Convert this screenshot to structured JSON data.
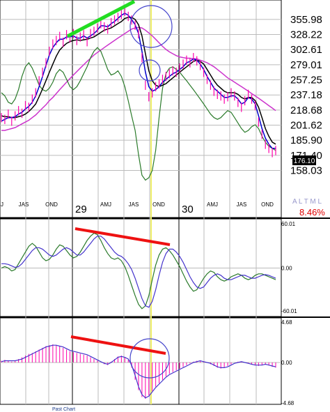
{
  "chart_data": [
    {
      "type": "line",
      "panel": "price",
      "y_ticks": [
        "355.98",
        "328.22",
        "302.61",
        "279.01",
        "257.25",
        "237.18",
        "218.68",
        "201.62",
        "185.90",
        "171.40",
        "158.03"
      ],
      "y_tick_values": [
        355.98,
        328.22,
        302.61,
        279.01,
        257.25,
        237.18,
        218.68,
        201.62,
        185.9,
        171.4,
        158.03
      ],
      "ylim": [
        148,
        375
      ],
      "scale": "log",
      "last_price_label": "176.10",
      "change_label": "8.46%",
      "change_color": "#e00000",
      "toggle_label": "A L T M L",
      "x_month_labels": [
        "J",
        "JAS",
        "OND",
        "AMJ",
        "JAS",
        "OND",
        "AMJ",
        "JAS",
        "OND"
      ],
      "x_year_labels": [
        "29",
        "30"
      ],
      "series": [
        {
          "color": "#ff00aa",
          "kind": "price_bars"
        },
        {
          "color": "#0000cc",
          "kind": "short_ma"
        },
        {
          "color": "#000000",
          "kind": "mid_ma"
        },
        {
          "color": "#cc33cc",
          "kind": "long_ma"
        },
        {
          "color": "#2a7a2a",
          "kind": "oscillator_overlay"
        }
      ],
      "x": [
        0,
        1,
        2,
        3,
        4,
        5,
        6,
        7,
        8,
        9,
        10,
        11,
        12,
        13,
        14,
        15,
        16,
        17,
        18,
        19,
        20,
        21,
        22,
        23,
        24,
        25,
        26,
        27,
        28,
        29,
        30,
        31,
        32,
        33,
        34,
        35,
        36,
        37,
        38,
        39,
        40,
        41,
        42,
        43,
        44,
        45,
        46,
        47,
        48,
        49,
        50,
        51,
        52,
        53,
        54,
        55,
        56,
        57,
        58,
        59,
        60,
        61,
        62,
        63,
        64,
        65,
        66,
        67,
        68,
        69,
        70,
        71,
        72,
        73,
        74,
        75,
        76,
        77,
        78,
        79,
        80
      ],
      "price": [
        210,
        208,
        214,
        206,
        212,
        218,
        215,
        224,
        222,
        232,
        240,
        256,
        268,
        282,
        300,
        312,
        318,
        325,
        315,
        328,
        322,
        330,
        318,
        324,
        328,
        316,
        330,
        334,
        340,
        348,
        342,
        338,
        350,
        355,
        360,
        366,
        372,
        362,
        355,
        345,
        330,
        290,
        250,
        235,
        240,
        248,
        252,
        258,
        262,
        266,
        270,
        268,
        274,
        280,
        286,
        282,
        290,
        285,
        278,
        268,
        258,
        250,
        242,
        238,
        236,
        232,
        235,
        240,
        236,
        228,
        222,
        230,
        238,
        232,
        224,
        205,
        192,
        182,
        178,
        174,
        176
      ],
      "short_ma": [
        206,
        208,
        210,
        210,
        211,
        214,
        216,
        220,
        223,
        228,
        236,
        248,
        262,
        278,
        294,
        306,
        314,
        320,
        320,
        324,
        324,
        326,
        322,
        322,
        326,
        322,
        326,
        330,
        336,
        344,
        344,
        342,
        348,
        352,
        358,
        364,
        368,
        364,
        356,
        346,
        330,
        300,
        268,
        248,
        242,
        244,
        248,
        254,
        258,
        262,
        266,
        268,
        272,
        276,
        282,
        284,
        288,
        286,
        280,
        272,
        262,
        254,
        246,
        242,
        238,
        234,
        234,
        236,
        236,
        232,
        226,
        228,
        234,
        232,
        226,
        212,
        198,
        188,
        182,
        178,
        178
      ],
      "mid_ma": [
        212,
        211,
        211,
        210,
        210,
        211,
        212,
        214,
        217,
        221,
        226,
        235,
        245,
        256,
        268,
        280,
        292,
        302,
        308,
        313,
        316,
        318,
        319,
        318,
        319,
        320,
        322,
        324,
        328,
        332,
        336,
        338,
        340,
        344,
        348,
        352,
        358,
        360,
        360,
        356,
        346,
        326,
        296,
        270,
        256,
        250,
        248,
        250,
        252,
        256,
        260,
        264,
        268,
        272,
        276,
        280,
        284,
        286,
        284,
        280,
        272,
        264,
        256,
        250,
        246,
        242,
        240,
        240,
        240,
        238,
        234,
        232,
        234,
        234,
        230,
        222,
        210,
        198,
        190,
        184,
        182
      ],
      "long_ma": [
        196,
        196,
        197,
        198,
        199,
        201,
        203,
        205,
        207,
        210,
        213,
        217,
        221,
        225,
        230,
        234,
        239,
        244,
        249,
        254,
        259,
        264,
        269,
        274,
        279,
        284,
        289,
        294,
        298,
        302,
        306,
        310,
        314,
        318,
        322,
        326,
        330,
        334,
        338,
        340,
        341,
        340,
        336,
        331,
        326,
        320,
        314,
        308,
        303,
        299,
        296,
        293,
        291,
        290,
        289,
        289,
        288,
        288,
        286,
        284,
        282,
        279,
        276,
        272,
        268,
        264,
        260,
        257,
        254,
        251,
        248,
        245,
        242,
        239,
        236,
        233,
        230,
        227,
        224,
        221,
        218
      ],
      "oscillator_overlay": [
        240,
        236,
        228,
        226,
        232,
        244,
        262,
        276,
        282,
        274,
        262,
        250,
        244,
        242,
        246,
        254,
        266,
        272,
        268,
        258,
        248,
        244,
        248,
        256,
        266,
        276,
        290,
        300,
        306,
        300,
        286,
        272,
        264,
        266,
        270,
        262,
        248,
        230,
        212,
        196,
        172,
        154,
        150,
        152,
        158,
        176,
        210,
        246,
        266,
        274,
        276,
        272,
        268,
        262,
        256,
        250,
        244,
        238,
        232,
        226,
        220,
        214,
        210,
        208,
        210,
        214,
        218,
        216,
        210,
        204,
        198,
        194,
        196,
        200,
        202,
        198,
        190,
        184,
        180,
        178,
        176
      ]
    },
    {
      "type": "line",
      "panel": "oscillator",
      "y_ticks": [
        "60.01",
        "0.00",
        "-60.01"
      ],
      "ylim": [
        -60.01,
        60.01
      ],
      "series": [
        {
          "color": "#2a7a2a",
          "values": [
            0,
            2,
            0,
            -4,
            -2,
            6,
            14,
            22,
            30,
            34,
            30,
            22,
            14,
            10,
            12,
            18,
            26,
            32,
            30,
            24,
            18,
            14,
            16,
            22,
            30,
            38,
            44,
            48,
            46,
            38,
            28,
            20,
            14,
            12,
            14,
            10,
            2,
            -10,
            -24,
            -38,
            -50,
            -56,
            -52,
            -38,
            -16,
            4,
            18,
            26,
            28,
            24,
            18,
            10,
            2,
            -8,
            -18,
            -26,
            -32,
            -30,
            -22,
            -14,
            -8,
            -4,
            -6,
            -12,
            -16,
            -18,
            -16,
            -12,
            -10,
            -8,
            -10,
            -14,
            -16,
            -14,
            -10,
            -8,
            -8,
            -10,
            -12,
            -14,
            -16
          ]
        },
        {
          "color": "#4433cc",
          "values": [
            6,
            6,
            5,
            3,
            1,
            2,
            6,
            12,
            18,
            24,
            28,
            28,
            26,
            22,
            18,
            16,
            18,
            22,
            26,
            28,
            26,
            22,
            18,
            18,
            22,
            28,
            34,
            40,
            44,
            44,
            40,
            34,
            28,
            22,
            18,
            16,
            12,
            6,
            -2,
            -14,
            -28,
            -42,
            -52,
            -54,
            -46,
            -30,
            -10,
            8,
            20,
            26,
            26,
            22,
            16,
            8,
            -2,
            -12,
            -20,
            -26,
            -28,
            -26,
            -20,
            -14,
            -10,
            -8,
            -10,
            -14,
            -16,
            -16,
            -14,
            -12,
            -10,
            -10,
            -12,
            -14,
            -14,
            -12,
            -10,
            -9,
            -10,
            -12,
            -14
          ]
        }
      ]
    },
    {
      "type": "bar",
      "panel": "histogram",
      "y_ticks": [
        "4.68",
        "0.00",
        "-4.68"
      ],
      "ylim": [
        -4.68,
        4.68
      ],
      "bar_color": "#ff00aa",
      "line_color": "#4433cc",
      "values": [
        0.2,
        0.3,
        0.2,
        0.1,
        0.2,
        0.4,
        0.6,
        0.8,
        1.0,
        1.1,
        1.3,
        1.5,
        1.7,
        1.9,
        2.0,
        2.1,
        2.0,
        1.9,
        1.7,
        1.5,
        1.3,
        1.2,
        1.1,
        1.0,
        0.9,
        0.8,
        0.6,
        0.4,
        0.2,
        0.0,
        -0.2,
        -0.3,
        0.1,
        0.4,
        0.7,
        0.8,
        0.6,
        0.3,
        -0.6,
        -2.0,
        -3.2,
        -4.0,
        -4.2,
        -3.8,
        -3.3,
        -2.8,
        -2.4,
        -2.0,
        -1.6,
        -1.3,
        -1.1,
        -0.9,
        -0.7,
        -0.5,
        -0.3,
        -0.1,
        0.1,
        0.2,
        0.2,
        0.1,
        0.0,
        -0.2,
        -0.4,
        -0.6,
        -0.7,
        -0.6,
        -0.4,
        -0.2,
        0.0,
        0.1,
        0.1,
        0.0,
        -0.1,
        -0.2,
        -0.3,
        -0.4,
        -0.3,
        -0.2,
        -0.3,
        -0.5,
        -0.6
      ],
      "signal": [
        0.1,
        0.2,
        0.2,
        0.2,
        0.2,
        0.3,
        0.4,
        0.6,
        0.8,
        1.0,
        1.2,
        1.4,
        1.6,
        1.8,
        1.9,
        2.0,
        2.0,
        1.9,
        1.8,
        1.6,
        1.4,
        1.3,
        1.2,
        1.1,
        1.0,
        0.9,
        0.7,
        0.5,
        0.3,
        0.1,
        -0.1,
        -0.2,
        0.0,
        0.3,
        0.6,
        0.7,
        0.6,
        0.4,
        -0.3,
        -1.5,
        -2.8,
        -3.7,
        -4.1,
        -3.9,
        -3.4,
        -2.9,
        -2.5,
        -2.1,
        -1.7,
        -1.4,
        -1.2,
        -1.0,
        -0.8,
        -0.6,
        -0.4,
        -0.2,
        0.0,
        0.1,
        0.2,
        0.1,
        0.0,
        -0.1,
        -0.3,
        -0.5,
        -0.6,
        -0.6,
        -0.5,
        -0.3,
        -0.1,
        0.0,
        0.1,
        0.0,
        -0.1,
        -0.2,
        -0.3,
        -0.3,
        -0.3,
        -0.2,
        -0.3,
        -0.4,
        -0.5
      ]
    }
  ],
  "footer": {
    "past_chart_label": "Past Chart"
  },
  "annotation_colors": {
    "green_trend": "#22dd22",
    "red_trend": "#ee1111",
    "circle": "#4444cc",
    "cursor": "#eeee66"
  }
}
